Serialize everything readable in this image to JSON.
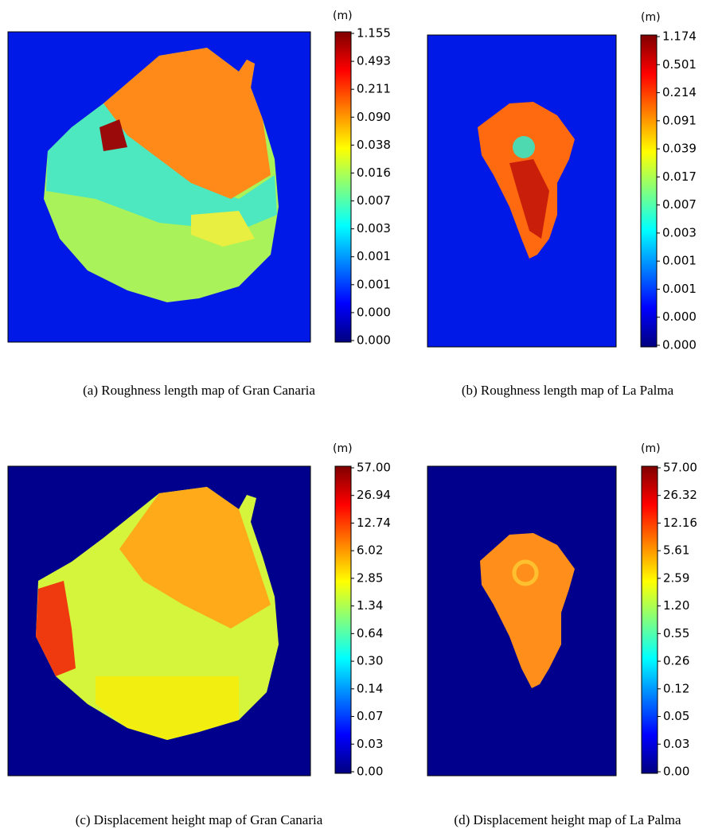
{
  "panels": [
    {
      "unit": "(m)",
      "ticks": [
        "1.155",
        "0.493",
        "0.211",
        "0.090",
        "0.038",
        "0.016",
        "0.007",
        "0.003",
        "0.001",
        "0.001",
        "0.000",
        "0.000"
      ],
      "caption": "(a) Roughness length map of Gran Canaria"
    },
    {
      "unit": "(m)",
      "ticks": [
        "1.174",
        "0.501",
        "0.214",
        "0.091",
        "0.039",
        "0.017",
        "0.007",
        "0.003",
        "0.001",
        "0.001",
        "0.000",
        "0.000"
      ],
      "caption": "(b) Roughness length map of La Palma"
    },
    {
      "unit": "(m)",
      "ticks": [
        "57.00",
        "26.94",
        "12.74",
        "6.02",
        "2.85",
        "1.34",
        "0.64",
        "0.30",
        "0.14",
        "0.07",
        "0.03",
        "0.00"
      ],
      "caption": "(c) Displacement height map of Gran Canaria"
    },
    {
      "unit": "(m)",
      "ticks": [
        "57.00",
        "26.32",
        "12.16",
        "5.61",
        "2.59",
        "1.20",
        "0.55",
        "0.26",
        "0.12",
        "0.05",
        "0.03",
        "0.00"
      ],
      "caption": "(d) Displacement height map of La Palma"
    }
  ]
}
